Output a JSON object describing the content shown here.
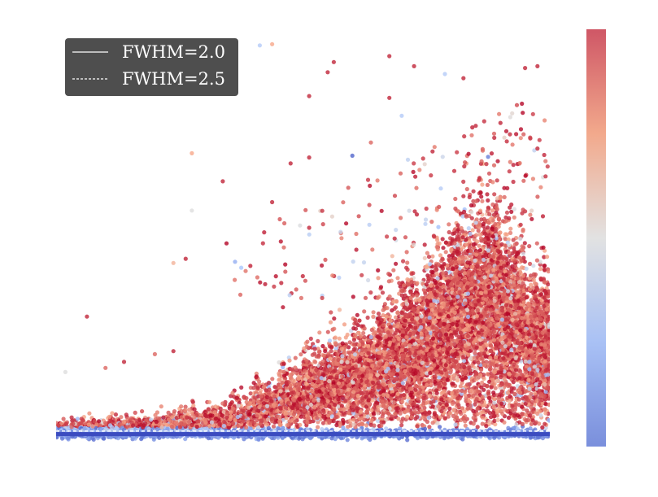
{
  "chart_data": {
    "type": "scatter",
    "title": "",
    "xlabel": "",
    "ylabel": "",
    "xlim": [
      0,
      80
    ],
    "ylim": [
      -2,
      68
    ],
    "grid": true,
    "legend_placement": "top-left",
    "colorbar": {
      "colormap": "coolwarm",
      "range": [
        0,
        1
      ],
      "low_color": "#3b4cc0",
      "mid_color": "#dddddd",
      "high_color": "#b40426"
    },
    "series": [
      {
        "name": "FWHM=2.0",
        "line_style": "solid",
        "y": 0.1,
        "color": "#3b4cc0"
      },
      {
        "name": "FWHM=2.5",
        "line_style": "dashed",
        "y": 0.6,
        "color": "#ffffff"
      }
    ],
    "cluster_profile": {
      "x": [
        2,
        6,
        10,
        14,
        18,
        22,
        26,
        30,
        34,
        38,
        42,
        46,
        50,
        54,
        58,
        62,
        66,
        70,
        74,
        78
      ],
      "y_center": [
        0.6,
        0.7,
        0.8,
        0.9,
        1.0,
        1.2,
        1.6,
        2.4,
        3.6,
        5.0,
        6.5,
        8.0,
        9.5,
        11.5,
        14.0,
        17.0,
        22.0,
        24.0,
        19.0,
        14.0
      ],
      "y_spread": [
        1.5,
        1.6,
        1.8,
        2.0,
        2.2,
        2.6,
        3.2,
        4.0,
        5.0,
        6.0,
        7.0,
        8.0,
        9.0,
        10.0,
        11.0,
        12.0,
        13.0,
        14.0,
        13.0,
        12.0
      ],
      "density": [
        1.0,
        1.0,
        1.0,
        1.0,
        1.0,
        1.1,
        1.2,
        1.4,
        1.8,
        2.3,
        3.0,
        3.6,
        4.2,
        4.8,
        5.4,
        6.0,
        6.6,
        7.0,
        6.8,
        6.0
      ]
    },
    "outliers": [
      {
        "x": 33,
        "y": 65.3,
        "c": 0.3
      },
      {
        "x": 35,
        "y": 65.5,
        "c": 0.75
      },
      {
        "x": 45,
        "y": 62.5,
        "c": 0.95
      },
      {
        "x": 44,
        "y": 60.8,
        "c": 0.95
      },
      {
        "x": 41,
        "y": 56.8,
        "c": 0.95
      },
      {
        "x": 54,
        "y": 63.5,
        "c": 0.95
      },
      {
        "x": 54,
        "y": 56.5,
        "c": 0.95
      },
      {
        "x": 58,
        "y": 61.8,
        "c": 0.95
      },
      {
        "x": 63,
        "y": 60.5,
        "c": 0.3
      },
      {
        "x": 66,
        "y": 59.8,
        "c": 0.95
      },
      {
        "x": 68,
        "y": 51.8,
        "c": 0.95
      },
      {
        "x": 72,
        "y": 52.3,
        "c": 0.95
      },
      {
        "x": 76,
        "y": 61.5,
        "c": 0.95
      },
      {
        "x": 78,
        "y": 61.8,
        "c": 0.95
      },
      {
        "x": 78,
        "y": 48.0,
        "c": 0.95
      },
      {
        "x": 22,
        "y": 47.2,
        "c": 0.75
      },
      {
        "x": 27,
        "y": 42.5,
        "c": 0.95
      },
      {
        "x": 22,
        "y": 37.6,
        "c": 0.5
      },
      {
        "x": 21,
        "y": 29.5,
        "c": 0.95
      },
      {
        "x": 19,
        "y": 28.8,
        "c": 0.7
      },
      {
        "x": 5,
        "y": 19.8,
        "c": 0.95
      },
      {
        "x": 29,
        "y": 29.0,
        "c": 0.2
      },
      {
        "x": 30,
        "y": 28.0,
        "c": 0.25
      },
      {
        "x": 35,
        "y": 39.0,
        "c": 0.95
      },
      {
        "x": 38,
        "y": 45.5,
        "c": 0.95
      },
      {
        "x": 41,
        "y": 46.5,
        "c": 0.95
      },
      {
        "x": 48,
        "y": 46.8,
        "c": 0.05
      },
      {
        "x": 51,
        "y": 49.0,
        "c": 0.85
      },
      {
        "x": 56,
        "y": 53.5,
        "c": 0.3
      },
      {
        "x": 61,
        "y": 47.5,
        "c": 0.95
      },
      {
        "x": 66,
        "y": 40.0,
        "c": 0.95
      },
      {
        "x": 70,
        "y": 46.6,
        "c": 0.1
      },
      {
        "x": 71,
        "y": 49.8,
        "c": 0.95
      },
      {
        "x": 1.5,
        "y": 10.5,
        "c": 0.5
      },
      {
        "x": 8,
        "y": 11.2,
        "c": 0.85
      },
      {
        "x": 11,
        "y": 12.2,
        "c": 0.95
      },
      {
        "x": 16,
        "y": 13.5,
        "c": 0.85
      },
      {
        "x": 19,
        "y": 14.0,
        "c": 0.95
      }
    ]
  }
}
